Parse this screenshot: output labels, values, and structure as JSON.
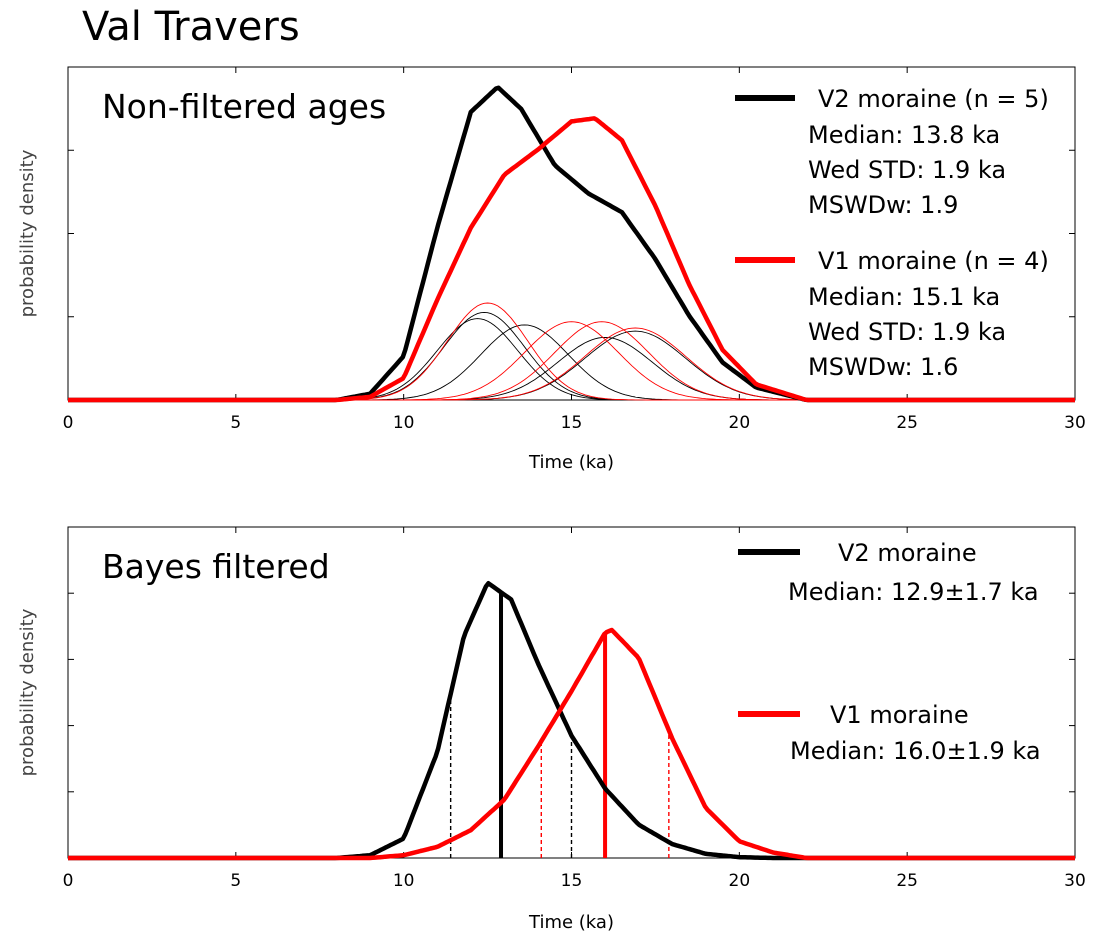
{
  "title": "Val Travers",
  "colors": {
    "V2": "#000000",
    "V1": "#ff0000"
  },
  "chart_data": [
    {
      "type": "line",
      "title": "Non-filtered ages",
      "xlabel": "Time (ka)",
      "ylabel": "probability density",
      "xlim": [
        0,
        30
      ],
      "xticks": [
        0,
        5,
        10,
        15,
        20,
        25,
        30
      ],
      "yticks_count": 4,
      "grid": false,
      "series": [
        {
          "name": "V2 moraine (n = 5)",
          "color": "#000000",
          "summary_lines": [
            "Median: 13.8 ka",
            "Wed STD: 1.9 ka",
            "MSWDw: 1.9"
          ],
          "components": [
            {
              "mean": 12.2,
              "sd": 1.2,
              "peak": 0.26
            },
            {
              "mean": 12.4,
              "sd": 1.2,
              "peak": 0.28
            },
            {
              "mean": 13.6,
              "sd": 1.3,
              "peak": 0.24
            },
            {
              "mean": 16.0,
              "sd": 1.4,
              "peak": 0.2
            },
            {
              "mean": 16.9,
              "sd": 1.5,
              "peak": 0.22
            }
          ],
          "x": [
            8,
            9,
            10,
            11,
            12,
            12.8,
            13.5,
            14.5,
            15.5,
            16.5,
            17.5,
            18.5,
            19.5,
            20.5,
            22
          ],
          "y": [
            0.0,
            0.02,
            0.14,
            0.55,
            0.92,
            1.0,
            0.93,
            0.75,
            0.66,
            0.6,
            0.45,
            0.27,
            0.12,
            0.04,
            0.0
          ]
        },
        {
          "name": "V1 moraine (n = 4)",
          "color": "#ff0000",
          "summary_lines": [
            "Median: 15.1 ka",
            "Wed STD: 1.9 ka",
            "MSWDw: 1.6"
          ],
          "components": [
            {
              "mean": 12.5,
              "sd": 1.2,
              "peak": 0.31
            },
            {
              "mean": 15.0,
              "sd": 1.4,
              "peak": 0.25
            },
            {
              "mean": 15.9,
              "sd": 1.4,
              "peak": 0.25
            },
            {
              "mean": 16.9,
              "sd": 1.5,
              "peak": 0.23
            }
          ],
          "x": [
            8,
            9,
            10,
            11,
            12,
            13,
            14,
            15,
            15.7,
            16.5,
            17.5,
            18.5,
            19.5,
            20.5,
            22
          ],
          "y": [
            0.0,
            0.01,
            0.07,
            0.32,
            0.55,
            0.72,
            0.8,
            0.89,
            0.9,
            0.83,
            0.62,
            0.37,
            0.16,
            0.05,
            0.0
          ]
        }
      ]
    },
    {
      "type": "line",
      "title": "Bayes filtered",
      "xlabel": "Time (ka)",
      "ylabel": "probability density",
      "xlim": [
        0,
        30
      ],
      "xticks": [
        0,
        5,
        10,
        15,
        20,
        25,
        30
      ],
      "yticks_count": 5,
      "grid": false,
      "series": [
        {
          "name": "V2 moraine",
          "color": "#000000",
          "summary_lines": [
            "Median: 12.9±1.7 ka"
          ],
          "median": 12.9,
          "interval": [
            11.4,
            15.0
          ],
          "x": [
            8,
            9,
            10,
            11,
            11.8,
            12.5,
            13.2,
            14,
            15,
            16,
            17,
            18,
            19,
            20,
            21
          ],
          "y": [
            0.0,
            0.01,
            0.07,
            0.38,
            0.8,
            0.99,
            0.93,
            0.7,
            0.44,
            0.25,
            0.12,
            0.05,
            0.015,
            0.003,
            0.0
          ]
        },
        {
          "name": "V1 moraine",
          "color": "#ff0000",
          "summary_lines": [
            "Median: 16.0±1.9 ka"
          ],
          "median": 16.0,
          "interval": [
            14.1,
            17.9
          ],
          "x": [
            9,
            10,
            11,
            12,
            13,
            14,
            15,
            16,
            16.2,
            17,
            18,
            19,
            20,
            21,
            22
          ],
          "y": [
            0.0,
            0.01,
            0.04,
            0.1,
            0.21,
            0.4,
            0.6,
            0.81,
            0.82,
            0.72,
            0.43,
            0.18,
            0.06,
            0.02,
            0.0
          ]
        }
      ]
    }
  ]
}
